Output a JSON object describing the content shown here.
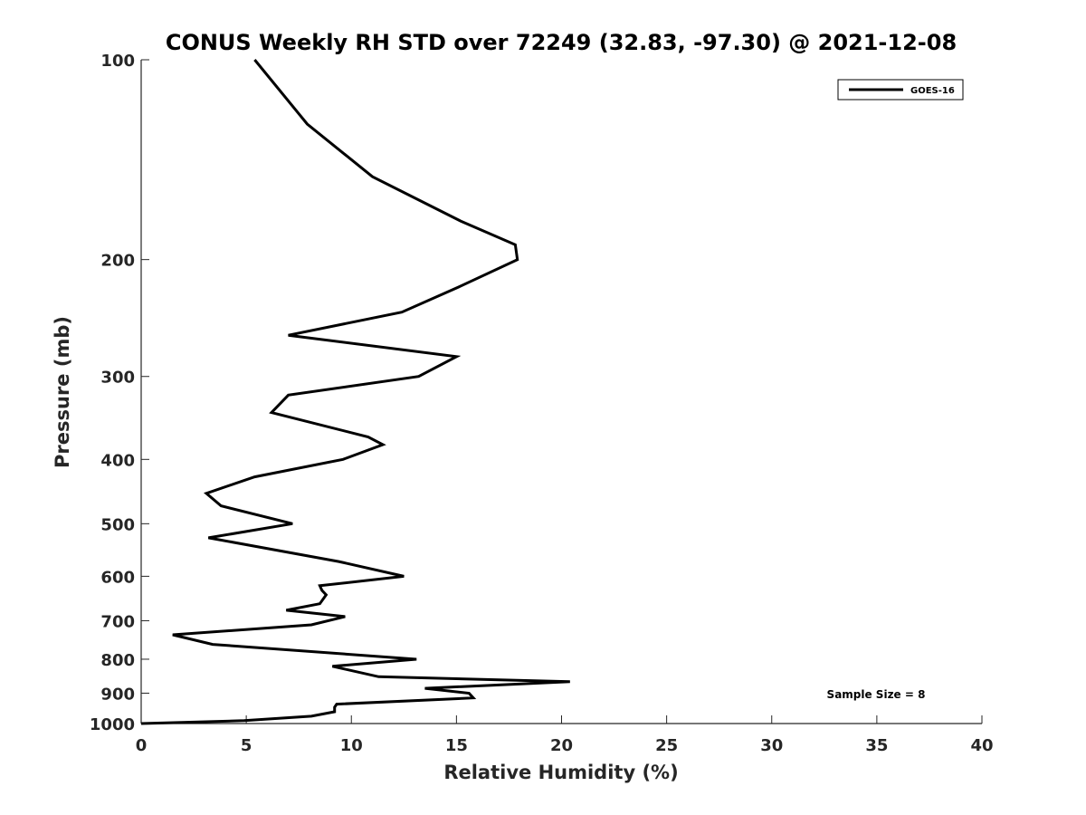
{
  "chart_data": {
    "type": "line",
    "title": "CONUS Weekly RH STD over 72249 (32.83, -97.30) @ 2021-12-08",
    "xlabel": "Relative Humidity (%)",
    "ylabel": "Pressure (mb)",
    "xlim": [
      0,
      40
    ],
    "ylim": [
      1000,
      100
    ],
    "y_scale": "log",
    "y_reversed": true,
    "grid": false,
    "legend_position": "top-right",
    "x_ticks": [
      0,
      5,
      10,
      15,
      20,
      25,
      30,
      35,
      40
    ],
    "y_ticks": [
      100,
      200,
      300,
      400,
      500,
      600,
      700,
      800,
      900,
      1000
    ],
    "line_color": "#000000",
    "series": [
      {
        "name": "GOES-16",
        "x": [
          5.4,
          7.9,
          11.0,
          15.2,
          17.8,
          17.9,
          15.1,
          12.4,
          7.0,
          15.0,
          13.2,
          7.0,
          6.2,
          10.8,
          11.5,
          9.6,
          5.4,
          3.1,
          3.8,
          7.2,
          3.2,
          9.4,
          12.5,
          8.5,
          8.6,
          8.8,
          8.5,
          6.9,
          9.7,
          8.1,
          1.5,
          3.4,
          13.1,
          9.1,
          11.3,
          20.4,
          13.5,
          15.6,
          15.8,
          9.3,
          9.2,
          9.2,
          8.1,
          4.9,
          0.0
        ],
        "y": [
          100,
          125,
          150,
          175,
          190,
          200,
          220,
          240,
          260,
          280,
          300,
          320,
          340,
          370,
          380,
          400,
          425,
          450,
          470,
          500,
          525,
          570,
          600,
          620,
          630,
          640,
          660,
          675,
          690,
          710,
          735,
          760,
          800,
          820,
          850,
          865,
          885,
          900,
          915,
          935,
          945,
          960,
          975,
          990,
          1000
        ]
      }
    ],
    "annotations": [
      "Sample Size = 8"
    ]
  }
}
